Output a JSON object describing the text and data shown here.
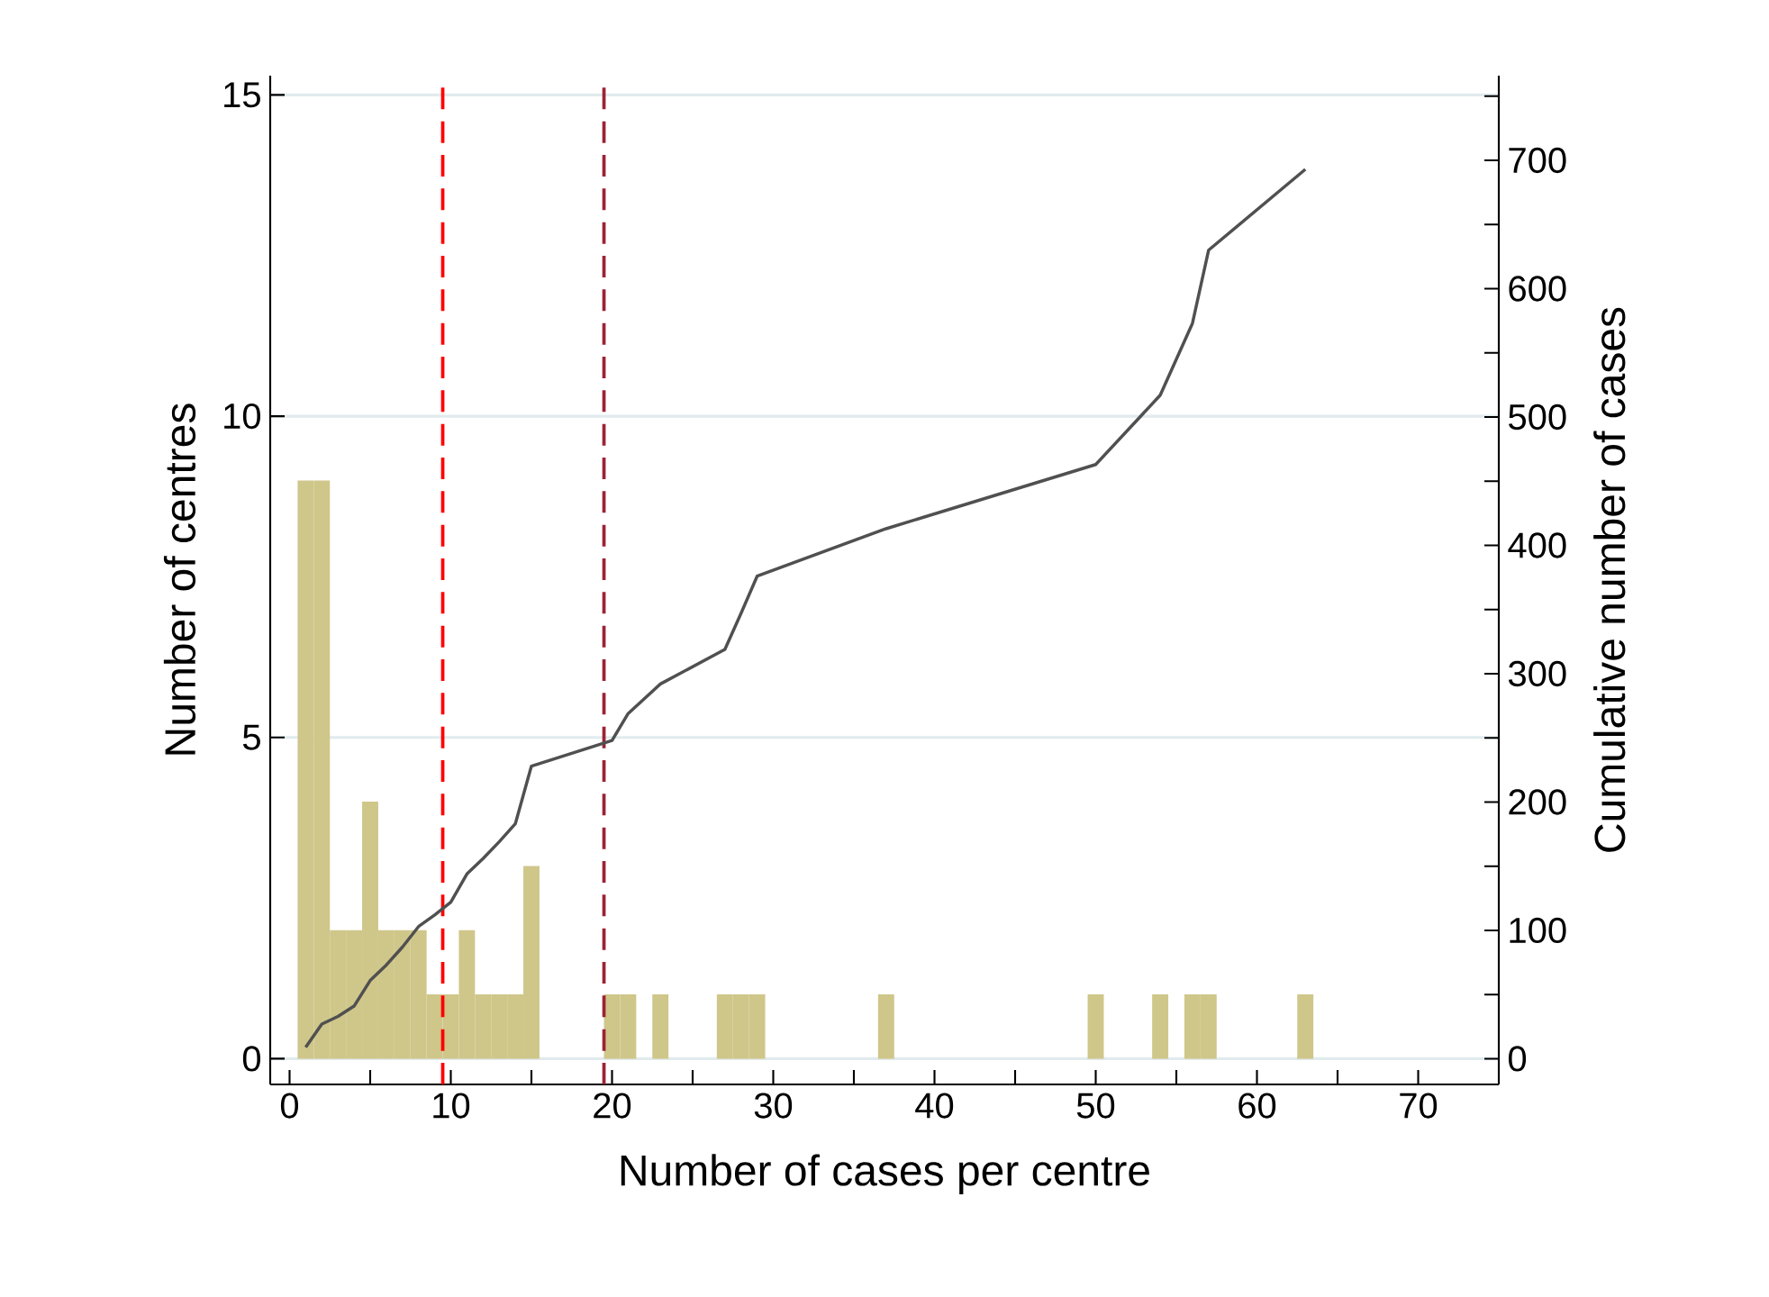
{
  "chart_data": {
    "type": "histogram",
    "xlabel": "Number of cases per centre",
    "ylabel": "Number of centres",
    "y2label": "Cumulative number of cases",
    "xlim": [
      -1.2,
      75
    ],
    "ylim": [
      -0.4,
      15.3
    ],
    "y2lim": [
      -20,
      766
    ],
    "xticks": [
      0,
      {
        "value": 5,
        "label": null
      },
      10,
      {
        "value": 15,
        "label": null
      },
      20,
      {
        "value": 25,
        "label": null
      },
      30,
      {
        "value": 35,
        "label": null
      },
      40,
      {
        "value": 45,
        "label": null
      },
      50,
      {
        "value": 55,
        "label": null
      },
      60,
      {
        "value": 65,
        "label": null
      },
      70
    ],
    "yticks": [
      0,
      5,
      10,
      15
    ],
    "y2ticks": [
      0,
      {
        "value": 50,
        "label": null
      },
      100,
      {
        "value": 150,
        "label": null
      },
      200,
      {
        "value": 250,
        "label": null
      },
      300,
      {
        "value": 350,
        "label": null
      },
      400,
      {
        "value": 450,
        "label": null
      },
      500,
      {
        "value": 550,
        "label": null
      },
      600,
      {
        "value": 650,
        "label": null
      },
      700,
      {
        "value": 750,
        "label": null
      }
    ],
    "grid": "y",
    "series": [
      {
        "color": "#cfc68a",
        "bins": [
          0.5,
          1.5,
          2.5,
          3.5,
          4.5,
          5.5,
          6.5,
          7.5,
          8.5,
          9.5,
          10.5,
          11.5,
          12.5,
          13.5,
          14.5,
          15.5,
          16.5,
          17.5,
          18.5,
          19.5,
          20.5,
          21.5,
          22.5,
          23.5,
          24.5,
          25.5,
          26.5,
          27.5,
          28.5,
          29.5,
          30.5,
          31.5,
          32.5,
          33.5,
          34.5,
          35.5,
          36.5,
          37.5,
          38.5,
          39.5,
          40.5,
          41.5,
          42.5,
          43.5,
          44.5,
          45.5,
          46.5,
          47.5,
          48.5,
          49.5,
          50.5,
          51.5,
          52.5,
          53.5,
          54.5,
          55.5,
          56.5,
          57.5,
          58.5,
          59.5,
          60.5,
          61.5,
          62.5,
          63.5
        ],
        "values": [
          9,
          9,
          2,
          2,
          4,
          2,
          2,
          2,
          1,
          1,
          2,
          1,
          1,
          1,
          3,
          0,
          0,
          0,
          0,
          1,
          1,
          0,
          1,
          0,
          0,
          0,
          1,
          1,
          1,
          0,
          0,
          0,
          0,
          0,
          0,
          0,
          1,
          0,
          0,
          0,
          0,
          0,
          0,
          0,
          0,
          0,
          0,
          0,
          0,
          1,
          0,
          0,
          0,
          1,
          0,
          1,
          1,
          0,
          0,
          0,
          0,
          0,
          1
        ]
      },
      {
        "type": "line",
        "axis": "y2",
        "color": "#505050",
        "x": [
          1,
          2,
          3,
          4,
          5,
          6,
          7,
          8,
          9,
          10,
          11,
          12,
          13,
          14,
          15,
          20,
          21,
          23,
          27,
          28,
          29,
          37,
          50,
          54,
          56,
          57,
          63
        ],
        "values": [
          9,
          27,
          33,
          41,
          61,
          73,
          87,
          103,
          112,
          122,
          144,
          156,
          169,
          183,
          228,
          248,
          269,
          292,
          319,
          347,
          376,
          413,
          463,
          517,
          573,
          630,
          693
        ]
      }
    ],
    "ref_lines": [
      {
        "axis": "x",
        "value": 9.5,
        "color": "#ff0000",
        "line_style": "dashed"
      },
      {
        "axis": "x",
        "value": 19.5,
        "color": "#9b2335",
        "line_style": "dashed"
      }
    ]
  }
}
